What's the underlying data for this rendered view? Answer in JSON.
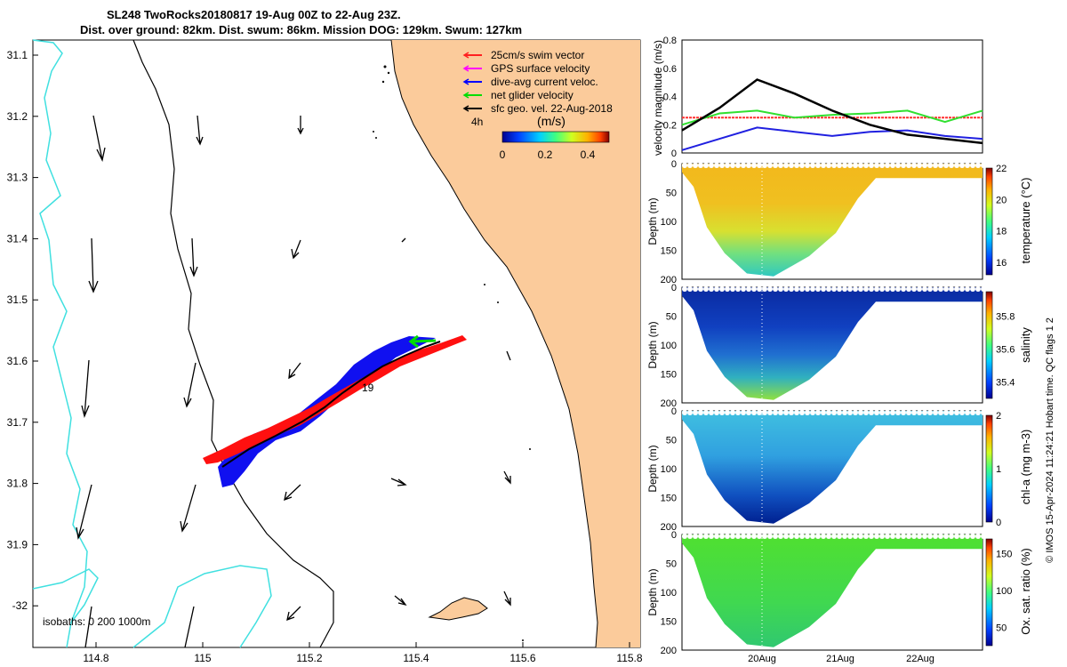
{
  "header": {
    "line1": "SL248 TwoRocks20180817 19-Aug 00Z to 22-Aug 23Z.",
    "line2": "Dist. over ground: 82km. Dist. swum: 86km. Mission DOG: 129km. Swum: 127km"
  },
  "colors": {
    "land": "#fbcb9b",
    "coast_isobath": "#40e0e0",
    "swim_vector": "#ff0000",
    "gps_velocity": "#ff00ff",
    "current_velocity": "#0000ff",
    "net_glider": "#00dd00",
    "geo_velocity": "#000000"
  },
  "map": {
    "legend": [
      {
        "label": "25cm/s swim vector",
        "color": "#ff2020"
      },
      {
        "label": "GPS surface velocity",
        "color": "#ff00ff"
      },
      {
        "label": "dive-avg current veloc.",
        "color": "#0000ff"
      },
      {
        "label": "net glider velocity",
        "color": "#00dd00"
      },
      {
        "label": "sfc geo. vel. 22-Aug-2018",
        "color": "#000000"
      }
    ],
    "time_label": "4h",
    "colorbar_title": "(m/s)",
    "colorbar_ticks": [
      "0",
      "0.2",
      "0.4"
    ],
    "day_label": "19",
    "isobath_label": "isobaths: 0   200  1000m",
    "lat_ticks": [
      "31.1",
      "31.2",
      "31.3",
      "31.4",
      "31.5",
      "31.6",
      "31.7",
      "31.8",
      "31.9",
      "-32"
    ],
    "lon_ticks": [
      "114.8",
      "115",
      "115.2",
      "115.4",
      "115.6",
      "115.8"
    ]
  },
  "panels": {
    "velocity": {
      "ylabel": "velocity magnitude (m/s)",
      "ticks": [
        "0",
        "0.2",
        "0.4",
        "0.6",
        "0.8"
      ]
    },
    "depth_label": "Depth (m)",
    "depth_ticks": [
      "0",
      "50",
      "100",
      "150",
      "200"
    ],
    "temperature": {
      "label": "temperature (°C)",
      "ticks": [
        "16",
        "18",
        "20",
        "22"
      ]
    },
    "salinity": {
      "label": "salinity",
      "ticks": [
        "35.4",
        "35.6",
        "35.8"
      ]
    },
    "chla": {
      "label": "chl-a (mg m-3)",
      "ticks": [
        "0",
        "1",
        "2"
      ]
    },
    "oxygen": {
      "label": "Ox. sat. ratio (%)",
      "ticks": [
        "50",
        "100",
        "150"
      ]
    },
    "time_ticks": [
      "20Aug",
      "21Aug",
      "22Aug"
    ]
  },
  "credit": "© IMOS 15-Apr-2024 11:24:21 Hobart time. QC flags 1  2",
  "chart_data": [
    {
      "type": "line",
      "title": "",
      "ylabel": "velocity magnitude (m/s)",
      "ylim": [
        0,
        0.8
      ],
      "x": [
        "19-Aug 00Z",
        "19-Aug 12Z",
        "20-Aug 00Z",
        "20-Aug 12Z",
        "21-Aug 00Z",
        "21-Aug 12Z",
        "22-Aug 00Z",
        "22-Aug 12Z",
        "22-Aug 23Z"
      ],
      "series": [
        {
          "name": "25cm/s swim vector",
          "values": [
            0.25,
            0.25,
            0.25,
            0.25,
            0.25,
            0.25,
            0.25,
            0.25,
            0.25
          ]
        },
        {
          "name": "net glider velocity",
          "values": [
            0.2,
            0.28,
            0.3,
            0.25,
            0.27,
            0.28,
            0.3,
            0.22,
            0.3
          ]
        },
        {
          "name": "dive-avg current veloc.",
          "values": [
            0.02,
            0.1,
            0.18,
            0.15,
            0.12,
            0.15,
            0.16,
            0.12,
            0.1
          ]
        },
        {
          "name": "sfc geo. vel. 22-Aug-2018",
          "values": [
            0.16,
            0.32,
            0.52,
            0.42,
            0.3,
            0.2,
            0.13,
            0.1,
            0.07
          ]
        }
      ]
    },
    {
      "type": "heatmap",
      "ylabel": "Depth (m)",
      "colorbar_label": "temperature (°C)",
      "clim": [
        15.2,
        22
      ],
      "x_ticks": [
        "20Aug",
        "21Aug",
        "22Aug"
      ],
      "depth_profile_m": [
        0,
        40,
        100,
        170,
        195,
        170,
        110,
        25,
        20,
        25
      ]
    },
    {
      "type": "heatmap",
      "ylabel": "Depth (m)",
      "colorbar_label": "salinity",
      "clim": [
        35.3,
        35.95
      ],
      "x_ticks": [
        "20Aug",
        "21Aug",
        "22Aug"
      ]
    },
    {
      "type": "heatmap",
      "ylabel": "Depth (m)",
      "colorbar_label": "chl-a (mg m-3)",
      "clim": [
        0,
        2
      ],
      "x_ticks": [
        "20Aug",
        "21Aug",
        "22Aug"
      ]
    },
    {
      "type": "heatmap",
      "ylabel": "Depth (m)",
      "colorbar_label": "Ox. sat. ratio (%)",
      "clim": [
        25,
        170
      ],
      "x_ticks": [
        "20Aug",
        "21Aug",
        "22Aug"
      ]
    }
  ]
}
